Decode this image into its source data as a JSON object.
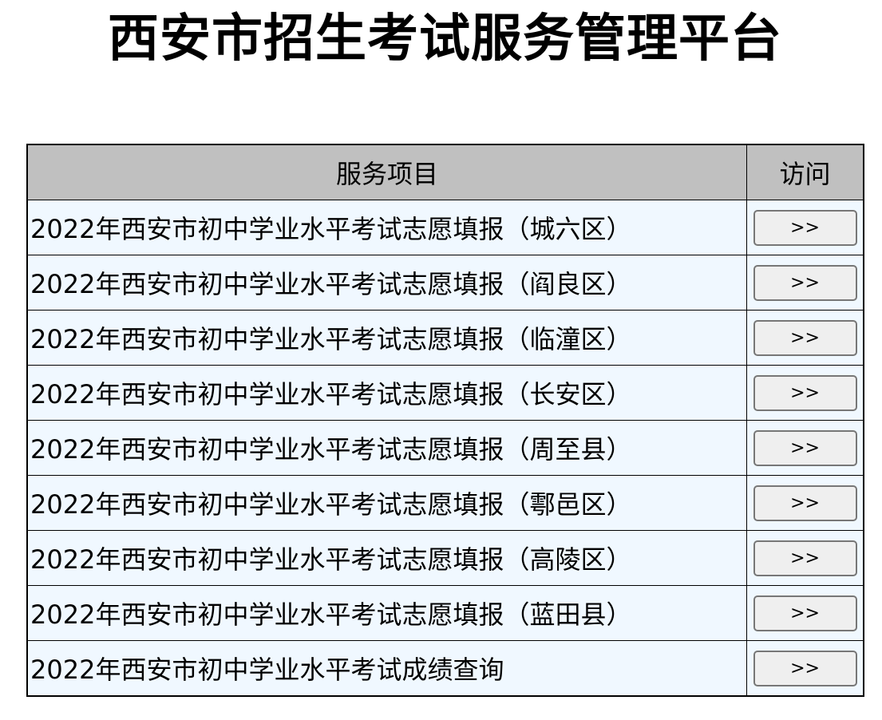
{
  "title": "西安市招生考试服务管理平台",
  "table": {
    "headers": {
      "service": "服务项目",
      "visit": "访问"
    },
    "button_label": ">>",
    "rows": [
      {
        "name": "2022年西安市初中学业水平考试志愿填报（城六区）"
      },
      {
        "name": "2022年西安市初中学业水平考试志愿填报（阎良区）"
      },
      {
        "name": "2022年西安市初中学业水平考试志愿填报（临潼区）"
      },
      {
        "name": "2022年西安市初中学业水平考试志愿填报（长安区）"
      },
      {
        "name": "2022年西安市初中学业水平考试志愿填报（周至县）"
      },
      {
        "name": "2022年西安市初中学业水平考试志愿填报（鄠邑区）"
      },
      {
        "name": "2022年西安市初中学业水平考试志愿填报（高陵区）"
      },
      {
        "name": "2022年西安市初中学业水平考试志愿填报（蓝田县）"
      },
      {
        "name": "2022年西安市初中学业水平考试成绩查询"
      }
    ]
  },
  "colors": {
    "header_bg": "#c0c0c0",
    "row_bg": "#f0f8ff",
    "button_bg": "#efefef"
  }
}
